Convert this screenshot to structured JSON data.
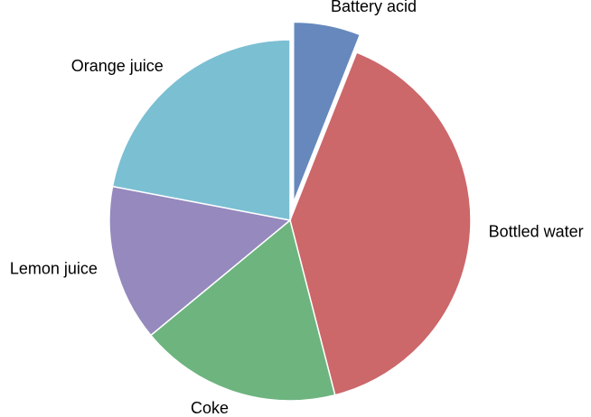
{
  "chart_data": {
    "type": "pie",
    "title": "",
    "slices": [
      {
        "label": "Battery acid",
        "value": 6,
        "color": "#6688bd",
        "exploded": true
      },
      {
        "label": "Bottled water",
        "value": 40,
        "color": "#cc676a",
        "exploded": false
      },
      {
        "label": "Coke",
        "value": 18,
        "color": "#6db47f",
        "exploded": false
      },
      {
        "label": "Lemon juice",
        "value": 14,
        "color": "#9589bd",
        "exploded": false
      },
      {
        "label": "Orange juice",
        "value": 22,
        "color": "#7bbfd3",
        "exploded": false
      }
    ],
    "start_angle_deg": 90,
    "direction": "clockwise",
    "legend": "none"
  }
}
